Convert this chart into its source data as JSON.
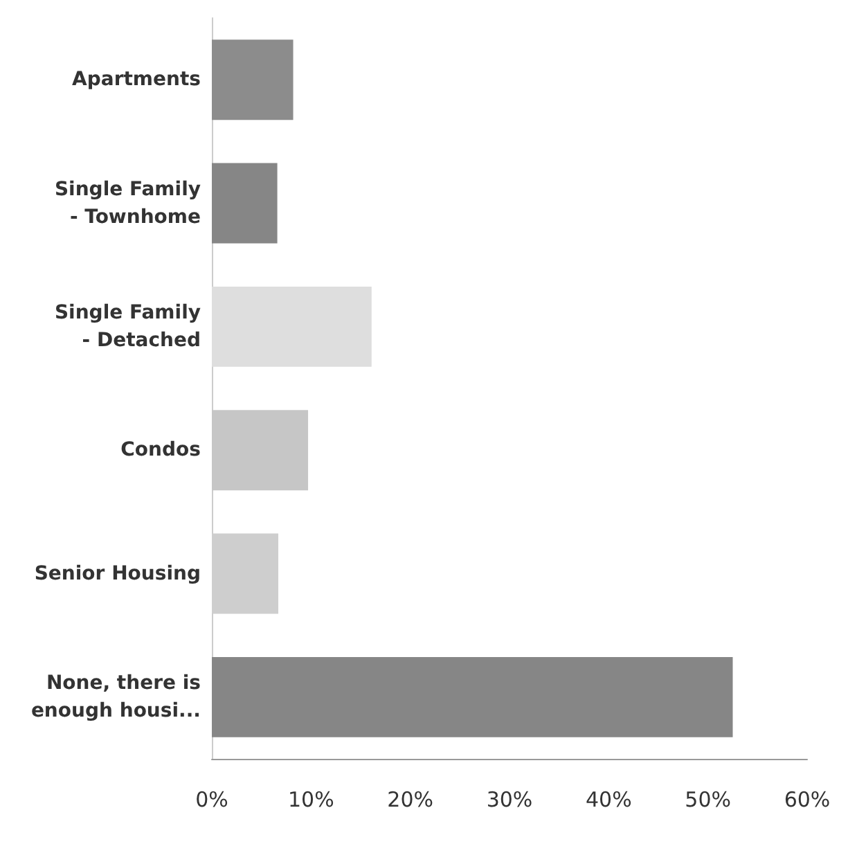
{
  "chart_data": {
    "type": "bar",
    "orientation": "horizontal",
    "categories": [
      "Apartments",
      "Single Family\n- Townhome",
      "Single Family\n- Detached",
      "Condos",
      "Senior Housing",
      "None, there is\nenough housi..."
    ],
    "values": [
      8.2,
      6.6,
      16.1,
      9.7,
      6.7,
      52.5
    ],
    "colors": [
      "#8c8c8c",
      "#868686",
      "#dedede",
      "#c6c6c6",
      "#cecece",
      "#868686"
    ],
    "xlim": [
      0,
      60
    ],
    "xticks": [
      {
        "value": 0,
        "label": "0%"
      },
      {
        "value": 10,
        "label": "10%"
      },
      {
        "value": 20,
        "label": "20%"
      },
      {
        "value": 30,
        "label": "30%"
      },
      {
        "value": 40,
        "label": "40%"
      },
      {
        "value": 50,
        "label": "50%"
      },
      {
        "value": 60,
        "label": "60%"
      }
    ],
    "grid": false
  }
}
